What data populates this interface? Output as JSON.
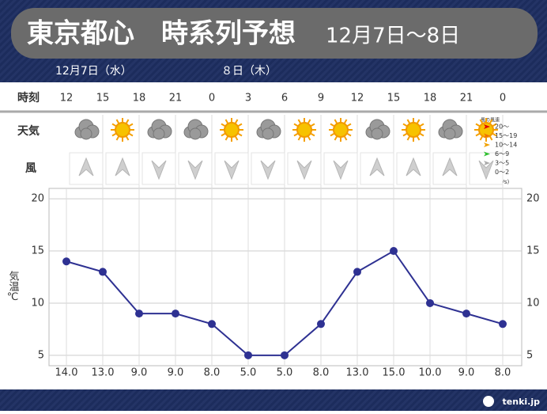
{
  "header": {
    "title": "東京都心　時系列予想",
    "dates": "12月7日～8日"
  },
  "days": [
    "12月7日（水）",
    "８日（木）"
  ],
  "rows": {
    "time": "時刻",
    "weather": "天気",
    "wind": "風"
  },
  "wind_legend": {
    "title": "風の風速",
    "items": [
      "20～",
      "15～19",
      "10～14",
      "6～9",
      "3～5",
      "0～2"
    ],
    "unit": "(m/s)"
  },
  "logo": "tenki.jp",
  "chart_data": {
    "type": "line",
    "y_label": "気温℃",
    "categories": [
      "12",
      "15",
      "18",
      "21",
      "0",
      "3",
      "6",
      "9",
      "12",
      "15",
      "18",
      "21",
      "0"
    ],
    "values": [
      14,
      13,
      9,
      9,
      8,
      5,
      5,
      8,
      13,
      15,
      10,
      9,
      8
    ],
    "value_labels": [
      "14.0",
      "13.0",
      "9.0",
      "9.0",
      "8.0",
      "5.0",
      "5.0",
      "8.0",
      "13.0",
      "15.0",
      "10.0",
      "9.0",
      "8.0"
    ],
    "color": "#2e3192",
    "ylim": [
      4,
      21
    ],
    "yticks": [
      5,
      10,
      15,
      20
    ],
    "grid": true
  }
}
